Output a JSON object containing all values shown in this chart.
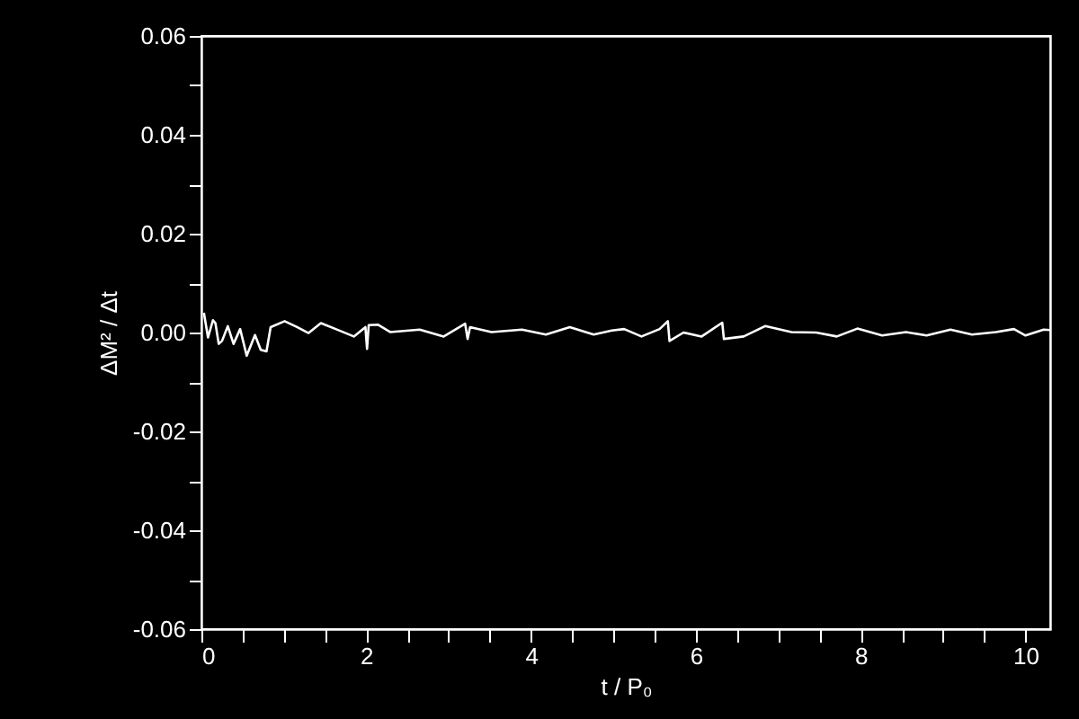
{
  "chart_data": {
    "type": "line",
    "xlabel": "t / P₀",
    "ylabel": "ΔM² / Δt",
    "xlim": [
      0,
      10.3
    ],
    "ylim": [
      -0.06,
      0.06
    ],
    "xticks": [
      0,
      {
        "value": 0.5,
        "label": null
      },
      {
        "value": 1,
        "label": null
      },
      {
        "value": 1.5,
        "label": null
      },
      2,
      {
        "value": 2.5,
        "label": null
      },
      {
        "value": 3,
        "label": null
      },
      {
        "value": 3.5,
        "label": null
      },
      4,
      {
        "value": 4.5,
        "label": null
      },
      {
        "value": 5,
        "label": null
      },
      {
        "value": 5.5,
        "label": null
      },
      6,
      {
        "value": 6.5,
        "label": null
      },
      {
        "value": 7,
        "label": null
      },
      {
        "value": 7.5,
        "label": null
      },
      8,
      {
        "value": 8.5,
        "label": null
      },
      {
        "value": 9,
        "label": null
      },
      {
        "value": 9.5,
        "label": null
      },
      10
    ],
    "yticks": [
      {
        "value": -0.06,
        "label": "-0.06"
      },
      {
        "value": -0.05,
        "label": null
      },
      {
        "value": -0.04,
        "label": "-0.04"
      },
      {
        "value": -0.03,
        "label": null
      },
      {
        "value": -0.02,
        "label": "-0.02"
      },
      {
        "value": -0.01,
        "label": null
      },
      {
        "value": 0,
        "label": "0.00"
      },
      {
        "value": 0.01,
        "label": null
      },
      {
        "value": 0.02,
        "label": "0.02"
      },
      {
        "value": 0.03,
        "label": null
      },
      {
        "value": 0.04,
        "label": "0.04"
      },
      {
        "value": 0.05,
        "label": null
      },
      {
        "value": 0.06,
        "label": "0.06"
      }
    ],
    "series": [
      {
        "color": "#ffffff",
        "x": [
          0.03,
          0.08,
          0.14,
          0.17,
          0.21,
          0.25,
          0.32,
          0.39,
          0.47,
          0.55,
          0.65,
          0.72,
          0.79,
          0.84,
          1.01,
          1.16,
          1.3,
          1.45,
          1.63,
          1.85,
          1.99,
          2.01,
          2.03,
          2.14,
          2.29,
          2.65,
          2.94,
          3.2,
          3.23,
          3.26,
          3.52,
          3.89,
          4.18,
          4.47,
          4.76,
          4.98,
          5.13,
          5.34,
          5.56,
          5.66,
          5.68,
          5.85,
          6.07,
          6.32,
          6.34,
          6.58,
          6.84,
          7.16,
          7.46,
          7.71,
          7.96,
          8.26,
          8.55,
          8.8,
          9.09,
          9.35,
          9.64,
          9.86,
          10.0,
          10.22,
          10.3
        ],
        "values": [
          0.004,
          -0.001,
          0.0025,
          0.0019,
          -0.0023,
          -0.0017,
          0.0013,
          -0.0023,
          0.0007,
          -0.0047,
          -0.0005,
          -0.0035,
          -0.0038,
          0.0011,
          0.0023,
          0.0011,
          -0.0001,
          0.0019,
          0.0007,
          -0.0008,
          0.0011,
          -0.0033,
          0.0015,
          0.0016,
          0.0001,
          0.0006,
          -0.0008,
          0.0018,
          -0.0013,
          0.0011,
          0.0001,
          0.0006,
          -0.0004,
          0.0011,
          -0.0004,
          0.0004,
          0.0007,
          -0.0008,
          0.0007,
          0.0023,
          -0.0017,
          0,
          -0.0008,
          0.002,
          -0.0013,
          -0.0008,
          0.0013,
          0.0001,
          0,
          -0.0008,
          0.0008,
          -0.0006,
          0.0001,
          -0.0006,
          0.0006,
          -0.0004,
          0.0001,
          0.0007,
          -0.0006,
          0.0006,
          0.0005
        ]
      }
    ]
  }
}
